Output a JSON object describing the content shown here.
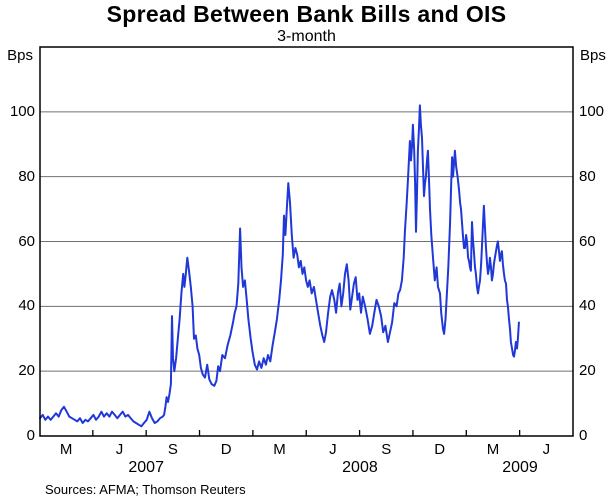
{
  "header": {
    "title": "Spread Between Bank Bills and OIS",
    "subtitle": "3-month"
  },
  "axes": {
    "unit_label": "Bps"
  },
  "footer": {
    "source": "Sources: AFMA; Thomson Reuters"
  },
  "colors": {
    "line": "#2038d8",
    "grid": "#707070",
    "frame": "#000000"
  },
  "chart_data": {
    "type": "line",
    "title": "Spread Between Bank Bills and OIS",
    "subtitle": "3-month",
    "ylabel": "Bps",
    "ylabel_right": "Bps",
    "grid": true,
    "legend": "none",
    "ylim": [
      0,
      120
    ],
    "yticks": [
      0,
      20,
      40,
      60,
      80,
      100
    ],
    "grid_values": [
      20,
      40,
      60,
      80,
      100
    ],
    "x_unit": "months since 2007-02-01 (axis spans ~Feb 2007 to ~Jul 2009)",
    "xlim": [
      0,
      29.97
    ],
    "x_quarter_labels": [
      {
        "label": "M",
        "t": 1.47
      },
      {
        "label": "J",
        "t": 4.47
      },
      {
        "label": "S",
        "t": 7.47
      },
      {
        "label": "D",
        "t": 10.47
      },
      {
        "label": "M",
        "t": 13.47
      },
      {
        "label": "J",
        "t": 16.47
      },
      {
        "label": "S",
        "t": 19.47
      },
      {
        "label": "D",
        "t": 22.47
      },
      {
        "label": "M",
        "t": 25.47
      },
      {
        "label": "J",
        "t": 28.47
      }
    ],
    "x_boundary_ticks": [
      2.97,
      5.97,
      8.97,
      11.97,
      14.97,
      17.97,
      20.97,
      23.97,
      26.97
    ],
    "year_labels": [
      {
        "label": "2007",
        "t": 5.97
      },
      {
        "label": "2008",
        "t": 17.99
      },
      {
        "label": "2009",
        "t": 26.99
      }
    ],
    "series": [
      {
        "name": "3-month bank bill spread to OIS (bps)",
        "points": [
          [
            0.0,
            5.5
          ],
          [
            0.15,
            6.5
          ],
          [
            0.3,
            5.0
          ],
          [
            0.45,
            6.0
          ],
          [
            0.6,
            5.0
          ],
          [
            0.75,
            6.0
          ],
          [
            0.9,
            7.0
          ],
          [
            1.05,
            6.0
          ],
          [
            1.2,
            8.0
          ],
          [
            1.35,
            9.0
          ],
          [
            1.5,
            7.5
          ],
          [
            1.65,
            6.0
          ],
          [
            1.8,
            5.5
          ],
          [
            1.95,
            5.0
          ],
          [
            2.1,
            4.5
          ],
          [
            2.25,
            5.5
          ],
          [
            2.4,
            4.0
          ],
          [
            2.55,
            5.0
          ],
          [
            2.7,
            4.5
          ],
          [
            2.85,
            5.5
          ],
          [
            3.0,
            6.5
          ],
          [
            3.15,
            5.0
          ],
          [
            3.3,
            6.0
          ],
          [
            3.45,
            7.5
          ],
          [
            3.6,
            6.0
          ],
          [
            3.75,
            7.0
          ],
          [
            3.9,
            6.0
          ],
          [
            4.05,
            7.5
          ],
          [
            4.2,
            6.5
          ],
          [
            4.35,
            5.5
          ],
          [
            4.5,
            6.5
          ],
          [
            4.65,
            7.5
          ],
          [
            4.8,
            6.0
          ],
          [
            4.95,
            6.5
          ],
          [
            5.1,
            5.5
          ],
          [
            5.25,
            4.5
          ],
          [
            5.4,
            4.0
          ],
          [
            5.55,
            3.5
          ],
          [
            5.7,
            3.0
          ],
          [
            5.85,
            4.0
          ],
          [
            6.0,
            5.0
          ],
          [
            6.15,
            7.5
          ],
          [
            6.3,
            5.5
          ],
          [
            6.45,
            4.0
          ],
          [
            6.6,
            4.5
          ],
          [
            6.75,
            5.5
          ],
          [
            6.9,
            6.0
          ],
          [
            6.98,
            6.5
          ],
          [
            7.05,
            9.0
          ],
          [
            7.12,
            12.0
          ],
          [
            7.2,
            10.5
          ],
          [
            7.28,
            13.0
          ],
          [
            7.36,
            16.0
          ],
          [
            7.42,
            37.0
          ],
          [
            7.48,
            24.0
          ],
          [
            7.55,
            20.0
          ],
          [
            7.65,
            24.0
          ],
          [
            7.75,
            30.0
          ],
          [
            7.85,
            36.0
          ],
          [
            7.95,
            44.0
          ],
          [
            8.05,
            50.0
          ],
          [
            8.12,
            46.0
          ],
          [
            8.2,
            50.0
          ],
          [
            8.28,
            55.0
          ],
          [
            8.38,
            51.0
          ],
          [
            8.48,
            46.0
          ],
          [
            8.58,
            40.0
          ],
          [
            8.66,
            30.0
          ],
          [
            8.76,
            31.0
          ],
          [
            8.85,
            27.0
          ],
          [
            8.95,
            25.0
          ],
          [
            9.05,
            21.0
          ],
          [
            9.15,
            19.0
          ],
          [
            9.28,
            18.0
          ],
          [
            9.4,
            22.0
          ],
          [
            9.52,
            17.5
          ],
          [
            9.65,
            16.0
          ],
          [
            9.8,
            15.5
          ],
          [
            9.92,
            17.0
          ],
          [
            10.02,
            21.5
          ],
          [
            10.12,
            20.0
          ],
          [
            10.25,
            25.0
          ],
          [
            10.4,
            24.0
          ],
          [
            10.55,
            28.0
          ],
          [
            10.7,
            31.0
          ],
          [
            10.85,
            35.0
          ],
          [
            10.95,
            38.0
          ],
          [
            11.05,
            40.0
          ],
          [
            11.15,
            47.0
          ],
          [
            11.25,
            64.0
          ],
          [
            11.33,
            52.0
          ],
          [
            11.42,
            46.0
          ],
          [
            11.52,
            48.0
          ],
          [
            11.62,
            42.0
          ],
          [
            11.72,
            36.0
          ],
          [
            11.85,
            30.0
          ],
          [
            11.95,
            26.0
          ],
          [
            12.08,
            22.0
          ],
          [
            12.2,
            20.5
          ],
          [
            12.32,
            23.0
          ],
          [
            12.45,
            21.0
          ],
          [
            12.58,
            24.0
          ],
          [
            12.7,
            22.0
          ],
          [
            12.82,
            25.0
          ],
          [
            12.95,
            23.0
          ],
          [
            13.08,
            28.0
          ],
          [
            13.2,
            32.0
          ],
          [
            13.32,
            36.0
          ],
          [
            13.45,
            42.0
          ],
          [
            13.55,
            48.0
          ],
          [
            13.65,
            56.0
          ],
          [
            13.72,
            68.0
          ],
          [
            13.8,
            62.0
          ],
          [
            13.88,
            70.0
          ],
          [
            13.96,
            78.0
          ],
          [
            14.06,
            72.0
          ],
          [
            14.16,
            62.0
          ],
          [
            14.26,
            55.0
          ],
          [
            14.36,
            58.0
          ],
          [
            14.46,
            56.0
          ],
          [
            14.56,
            52.0
          ],
          [
            14.66,
            54.0
          ],
          [
            14.76,
            50.0
          ],
          [
            14.86,
            52.0
          ],
          [
            14.96,
            48.0
          ],
          [
            15.06,
            46.0
          ],
          [
            15.16,
            48.0
          ],
          [
            15.28,
            44.0
          ],
          [
            15.4,
            46.0
          ],
          [
            15.52,
            42.0
          ],
          [
            15.64,
            38.0
          ],
          [
            15.76,
            34.0
          ],
          [
            15.88,
            31.0
          ],
          [
            15.98,
            29.0
          ],
          [
            16.08,
            32.0
          ],
          [
            16.2,
            38.0
          ],
          [
            16.32,
            43.0
          ],
          [
            16.42,
            45.0
          ],
          [
            16.55,
            42.0
          ],
          [
            16.65,
            38.0
          ],
          [
            16.75,
            44.0
          ],
          [
            16.85,
            47.0
          ],
          [
            16.95,
            40.0
          ],
          [
            17.05,
            44.0
          ],
          [
            17.15,
            50.0
          ],
          [
            17.25,
            53.0
          ],
          [
            17.35,
            48.0
          ],
          [
            17.45,
            39.0
          ],
          [
            17.55,
            43.0
          ],
          [
            17.65,
            47.0
          ],
          [
            17.75,
            49.0
          ],
          [
            17.85,
            42.0
          ],
          [
            17.95,
            44.0
          ],
          [
            18.05,
            38.0
          ],
          [
            18.15,
            43.0
          ],
          [
            18.28,
            40.0
          ],
          [
            18.42,
            36.0
          ],
          [
            18.55,
            31.5
          ],
          [
            18.68,
            34.0
          ],
          [
            18.8,
            38.0
          ],
          [
            18.92,
            42.0
          ],
          [
            19.05,
            40.0
          ],
          [
            19.18,
            37.0
          ],
          [
            19.3,
            32.0
          ],
          [
            19.42,
            34.0
          ],
          [
            19.56,
            29.0
          ],
          [
            19.68,
            32.0
          ],
          [
            19.8,
            35.0
          ],
          [
            19.92,
            41.0
          ],
          [
            20.05,
            40.0
          ],
          [
            20.15,
            44.0
          ],
          [
            20.25,
            45.0
          ],
          [
            20.35,
            48.0
          ],
          [
            20.45,
            55.0
          ],
          [
            20.52,
            63.0
          ],
          [
            20.62,
            72.0
          ],
          [
            20.7,
            80.0
          ],
          [
            20.8,
            91.0
          ],
          [
            20.86,
            85.0
          ],
          [
            20.92,
            90.0
          ],
          [
            20.97,
            96.0
          ],
          [
            21.04,
            88.0
          ],
          [
            21.09,
            78.0
          ],
          [
            21.14,
            63.0
          ],
          [
            21.2,
            75.0
          ],
          [
            21.25,
            88.0
          ],
          [
            21.31,
            95.0
          ],
          [
            21.36,
            102.0
          ],
          [
            21.42,
            96.0
          ],
          [
            21.48,
            92.0
          ],
          [
            21.54,
            82.0
          ],
          [
            21.59,
            74.0
          ],
          [
            21.65,
            78.0
          ],
          [
            21.7,
            80.0
          ],
          [
            21.76,
            85.0
          ],
          [
            21.81,
            88.0
          ],
          [
            21.87,
            80.0
          ],
          [
            21.93,
            70.0
          ],
          [
            22.0,
            62.0
          ],
          [
            22.1,
            55.0
          ],
          [
            22.2,
            48.0
          ],
          [
            22.3,
            52.0
          ],
          [
            22.38,
            46.0
          ],
          [
            22.49,
            44.0
          ],
          [
            22.56,
            38.0
          ],
          [
            22.66,
            33.0
          ],
          [
            22.72,
            31.5
          ],
          [
            22.8,
            36.0
          ],
          [
            22.88,
            44.0
          ],
          [
            22.96,
            52.0
          ],
          [
            23.06,
            66.0
          ],
          [
            23.12,
            78.0
          ],
          [
            23.17,
            86.0
          ],
          [
            23.22,
            80.0
          ],
          [
            23.28,
            84.0
          ],
          [
            23.33,
            88.0
          ],
          [
            23.4,
            83.0
          ],
          [
            23.48,
            80.0
          ],
          [
            23.56,
            76.0
          ],
          [
            23.62,
            72.0
          ],
          [
            23.67,
            70.0
          ],
          [
            23.74,
            65.0
          ],
          [
            23.78,
            62.0
          ],
          [
            23.84,
            58.0
          ],
          [
            23.9,
            58.0
          ],
          [
            23.96,
            62.0
          ],
          [
            24.01,
            60.0
          ],
          [
            24.07,
            55.0
          ],
          [
            24.12,
            54.0
          ],
          [
            24.18,
            52.0
          ],
          [
            24.23,
            51.0
          ],
          [
            24.29,
            66.0
          ],
          [
            24.35,
            60.0
          ],
          [
            24.4,
            57.0
          ],
          [
            24.46,
            52.0
          ],
          [
            24.51,
            50.0
          ],
          [
            24.57,
            46.0
          ],
          [
            24.63,
            44.0
          ],
          [
            24.68,
            46.0
          ],
          [
            24.74,
            48.0
          ],
          [
            24.8,
            53.0
          ],
          [
            24.85,
            58.0
          ],
          [
            24.9,
            64.0
          ],
          [
            24.96,
            71.0
          ],
          [
            25.02,
            64.0
          ],
          [
            25.08,
            58.0
          ],
          [
            25.14,
            53.0
          ],
          [
            25.19,
            50.0
          ],
          [
            25.25,
            52.0
          ],
          [
            25.3,
            55.0
          ],
          [
            25.36,
            52.0
          ],
          [
            25.41,
            48.0
          ],
          [
            25.47,
            50.0
          ],
          [
            25.52,
            53.0
          ],
          [
            25.58,
            55.0
          ],
          [
            25.64,
            57.0
          ],
          [
            25.7,
            59.0
          ],
          [
            25.75,
            60.0
          ],
          [
            25.81,
            57.0
          ],
          [
            25.86,
            54.0
          ],
          [
            25.92,
            56.0
          ],
          [
            25.97,
            57.0
          ],
          [
            26.03,
            53.0
          ],
          [
            26.09,
            50.0
          ],
          [
            26.14,
            48.0
          ],
          [
            26.2,
            47.0
          ],
          [
            26.26,
            42.0
          ],
          [
            26.31,
            40.0
          ],
          [
            26.37,
            36.0
          ],
          [
            26.43,
            33.0
          ],
          [
            26.48,
            29.0
          ],
          [
            26.54,
            27.0
          ],
          [
            26.6,
            25.0
          ],
          [
            26.65,
            24.5
          ],
          [
            26.7,
            26.0
          ],
          [
            26.76,
            29.0
          ],
          [
            26.82,
            27.0
          ],
          [
            26.87,
            30.0
          ],
          [
            26.93,
            35.0
          ]
        ]
      }
    ]
  }
}
